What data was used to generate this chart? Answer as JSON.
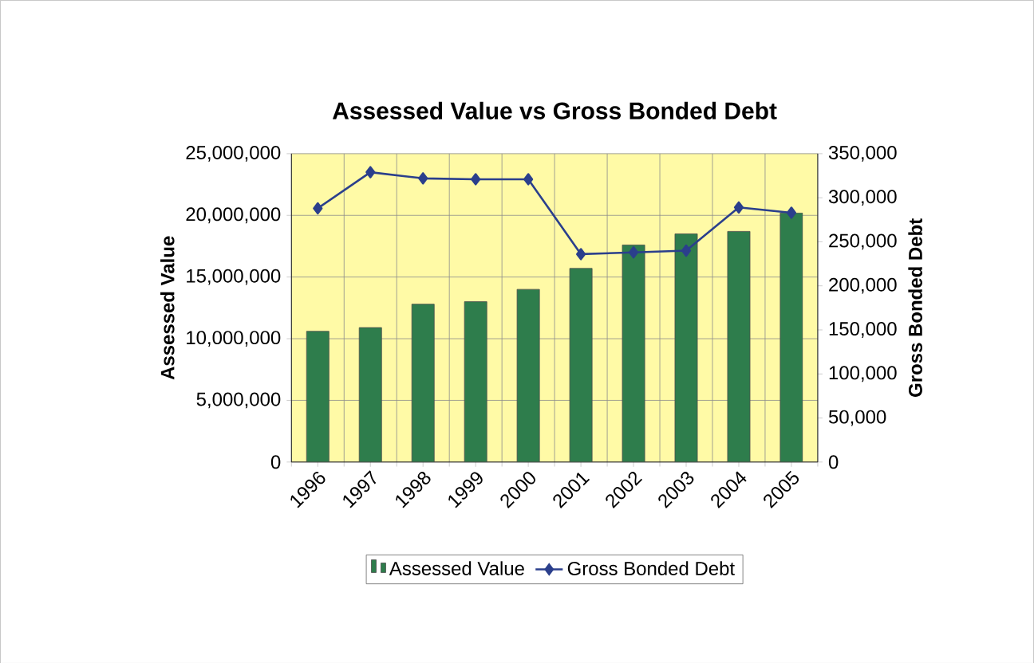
{
  "chart_data": {
    "type": "bar",
    "title": "Assessed Value vs Gross Bonded Debt",
    "ylabel": "Assessed Value",
    "y2label": "Gross Bonded Debt",
    "categories": [
      "1996",
      "1997",
      "1998",
      "1999",
      "2000",
      "2001",
      "2002",
      "2003",
      "2004",
      "2005"
    ],
    "series": [
      {
        "name": "Assessed Value",
        "color": "#2e7d4c",
        "values": [
          10600000,
          10900000,
          12800000,
          13000000,
          14000000,
          15700000,
          17600000,
          18500000,
          18700000,
          20200000
        ]
      },
      {
        "name": "Gross Bonded Debt",
        "type": "line",
        "axis": "y2",
        "color": "#2b3f8c",
        "marker": "diamond",
        "values": [
          288000,
          329000,
          322000,
          321000,
          321000,
          236000,
          238000,
          240000,
          289000,
          283000
        ]
      }
    ],
    "ylim": [
      0,
      25000000
    ],
    "yticks": [
      {
        "value": 0,
        "label": "0"
      },
      {
        "value": 5000000,
        "label": "5,000,000"
      },
      {
        "value": 10000000,
        "label": "10,000,000"
      },
      {
        "value": 15000000,
        "label": "15,000,000"
      },
      {
        "value": 20000000,
        "label": "20,000,000"
      },
      {
        "value": 25000000,
        "label": "25,000,000"
      }
    ],
    "y2lim": [
      0,
      350000
    ],
    "y2ticks": [
      {
        "value": 0,
        "label": "0"
      },
      {
        "value": 50000,
        "label": "50,000"
      },
      {
        "value": 100000,
        "label": "100,000"
      },
      {
        "value": 150000,
        "label": "150,000"
      },
      {
        "value": 200000,
        "label": "200,000"
      },
      {
        "value": 250000,
        "label": "250,000"
      },
      {
        "value": 300000,
        "label": "300,000"
      },
      {
        "value": 350000,
        "label": "350,000"
      }
    ],
    "grid": true,
    "legend": "bottom"
  }
}
